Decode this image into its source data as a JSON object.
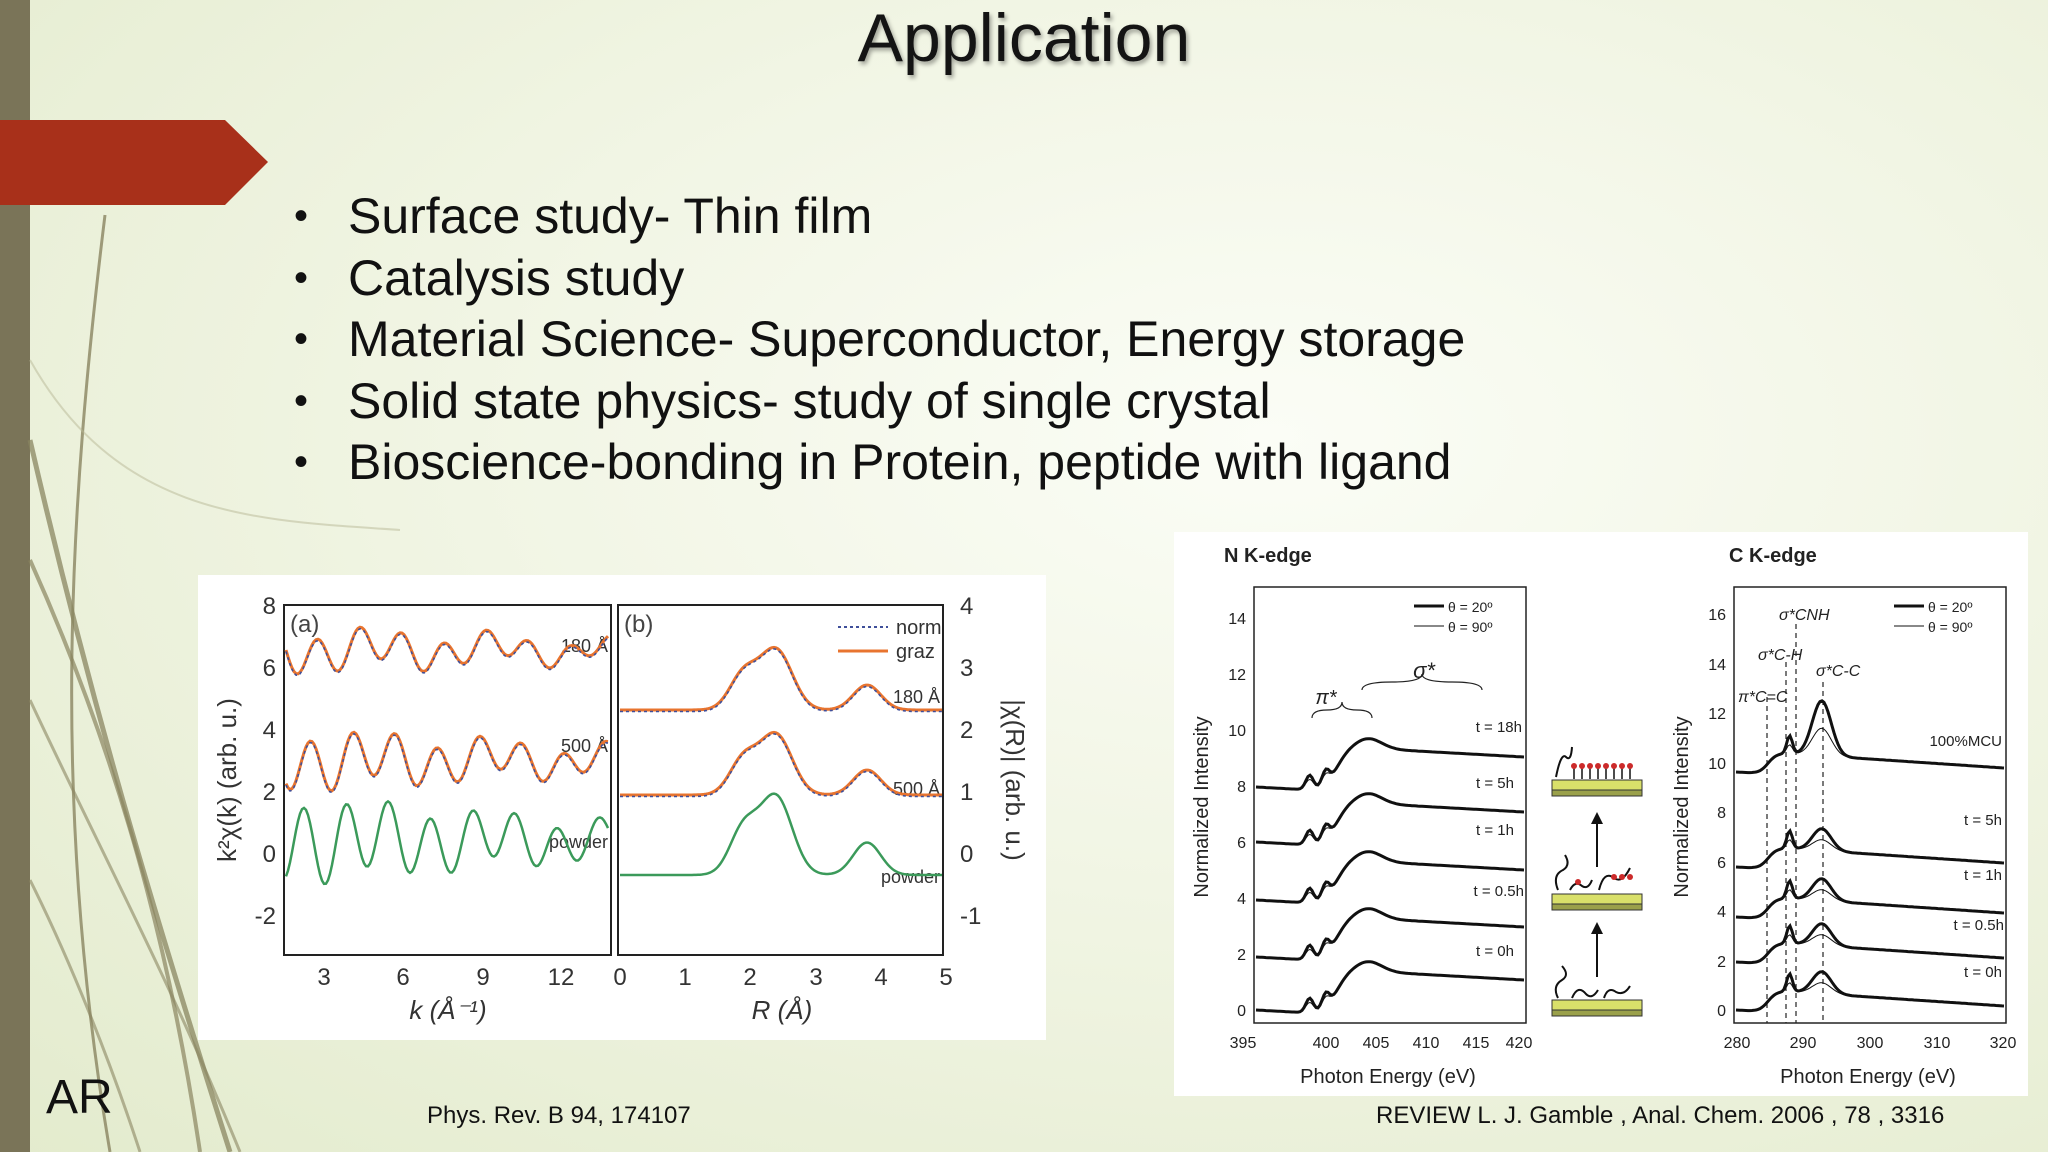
{
  "slide": {
    "title": "Application",
    "bullets": [
      "Surface study- Thin film",
      "Catalysis study",
      "Material Science- Superconductor, Energy storage",
      "Solid state physics- study of single crystal",
      "Bioscience-bonding in Protein, peptide with ligand"
    ],
    "logo_text": "AR",
    "ref_left": "Phys. Rev. B 94, 174107",
    "ref_right": "REVIEW L. J. Gamble , Anal. Chem. 2006 , 78 , 3316",
    "colors": {
      "accent_arrow": "#a8301a",
      "left_bar": "#7a7458",
      "orange": "#e8742f",
      "blue_dotted": "#3f4f9a",
      "green": "#3b9a5a"
    }
  },
  "exafs": {
    "panel_a": {
      "label": "(a)",
      "xlabel": "k (Å⁻¹)",
      "ylabel": "k²χ(k) (arb. u.)",
      "xticks": [
        "3",
        "6",
        "9",
        "12"
      ],
      "yticks": [
        "8",
        "6",
        "4",
        "2",
        "0",
        "-2"
      ],
      "curve_labels": [
        "180 Å",
        "500 Å",
        "powder"
      ]
    },
    "panel_b": {
      "label": "(b)",
      "xlabel": "R (Å)",
      "ylabel": "|χ(R)| (arb. u.)",
      "xticks": [
        "0",
        "1",
        "2",
        "3",
        "4",
        "5"
      ],
      "yticks": [
        "4",
        "3",
        "2",
        "1",
        "0",
        "-1"
      ],
      "curve_labels": [
        "180 Å",
        "500 Å",
        "powder"
      ],
      "legend": [
        "norm",
        "graz"
      ]
    }
  },
  "nexafs": {
    "n_edge": {
      "title": "N K-edge",
      "xlabel": "Photon Energy (eV)",
      "ylabel": "Normalized Intensity",
      "xticks": [
        "395",
        "400",
        "405",
        "410",
        "415",
        "420"
      ],
      "yticks": [
        "14",
        "12",
        "10",
        "8",
        "6",
        "4",
        "2",
        "0"
      ],
      "legend": [
        "θ = 20º",
        "θ = 90º"
      ],
      "peak_labels": [
        "π*",
        "σ*"
      ],
      "time_labels": [
        "t = 18h",
        "t = 5h",
        "t = 1h",
        "t = 0.5h",
        "t = 0h"
      ]
    },
    "c_edge": {
      "title": "C K-edge",
      "xlabel": "Photon Energy (eV)",
      "ylabel": "Normalized Intensity",
      "xticks": [
        "280",
        "290",
        "300",
        "310",
        "320"
      ],
      "yticks": [
        "16",
        "14",
        "12",
        "10",
        "8",
        "6",
        "4",
        "2",
        "0"
      ],
      "legend": [
        "θ = 20º",
        "θ = 90º"
      ],
      "peak_labels": [
        "π*C=C",
        "σ*C-H",
        "σ*CNH",
        "σ*C-C"
      ],
      "time_labels": [
        "100%MCU",
        "t = 5h",
        "t = 1h",
        "t = 0.5h",
        "t = 0h"
      ]
    }
  }
}
